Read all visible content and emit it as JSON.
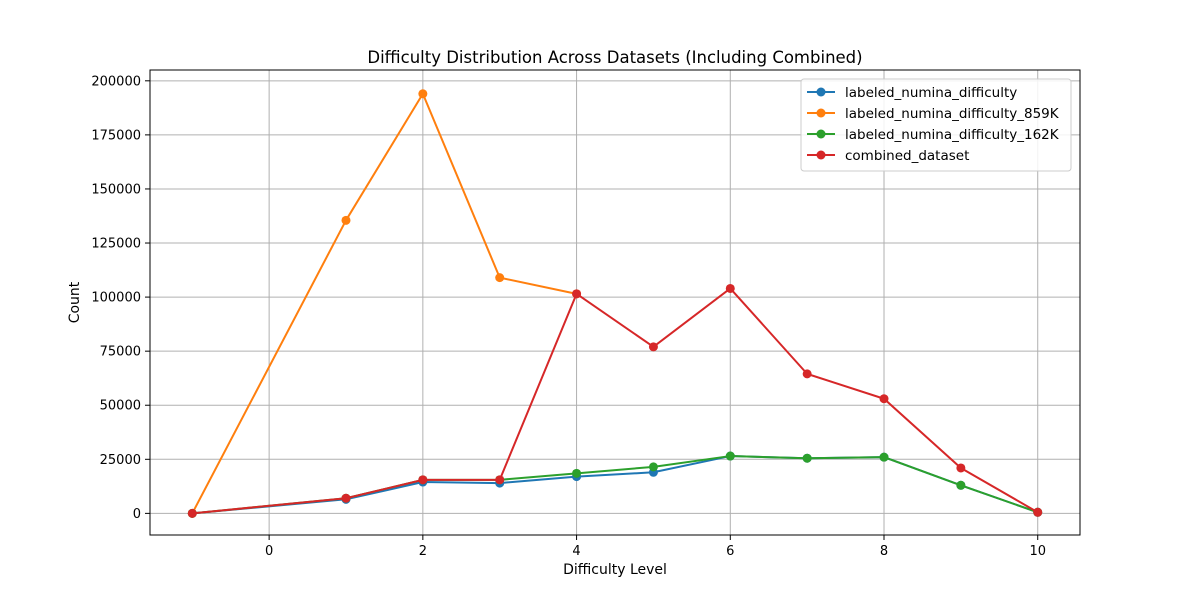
{
  "chart_data": {
    "type": "line",
    "title": "Difficulty Distribution Across Datasets (Including Combined)",
    "xlabel": "Difficulty Level",
    "ylabel": "Count",
    "xlim": [
      -1.55,
      10.55
    ],
    "ylim": [
      -10000,
      205000
    ],
    "xticks": [
      0,
      2,
      4,
      6,
      8,
      10
    ],
    "yticks": [
      0,
      25000,
      50000,
      75000,
      100000,
      125000,
      150000,
      175000,
      200000
    ],
    "grid": true,
    "legend_position": "top-right",
    "series": [
      {
        "name": "labeled_numina_difficulty",
        "color": "#1f77b4",
        "x": [
          -1,
          1,
          2,
          3,
          4,
          5,
          6,
          7,
          8,
          9,
          10
        ],
        "y": [
          0,
          6500,
          14500,
          14000,
          17000,
          19000,
          26500,
          25500,
          26000,
          13000,
          500
        ]
      },
      {
        "name": "labeled_numina_difficulty_859K",
        "color": "#ff7f0e",
        "x": [
          -1,
          1,
          2,
          3,
          4
        ],
        "y": [
          0,
          135500,
          194000,
          109000,
          101500
        ]
      },
      {
        "name": "labeled_numina_difficulty_162K",
        "color": "#2ca02c",
        "x": [
          -1,
          1,
          2,
          3,
          4,
          5,
          6,
          7,
          8,
          9,
          10
        ],
        "y": [
          0,
          7000,
          15500,
          15500,
          18500,
          21500,
          26500,
          25500,
          26000,
          13000,
          500
        ]
      },
      {
        "name": "combined_dataset",
        "color": "#d62728",
        "x": [
          -1,
          1,
          2,
          3,
          4,
          5,
          6,
          7,
          8,
          9,
          10
        ],
        "y": [
          0,
          7000,
          15500,
          15500,
          101500,
          77000,
          104000,
          64500,
          53000,
          21000,
          500
        ]
      }
    ]
  }
}
